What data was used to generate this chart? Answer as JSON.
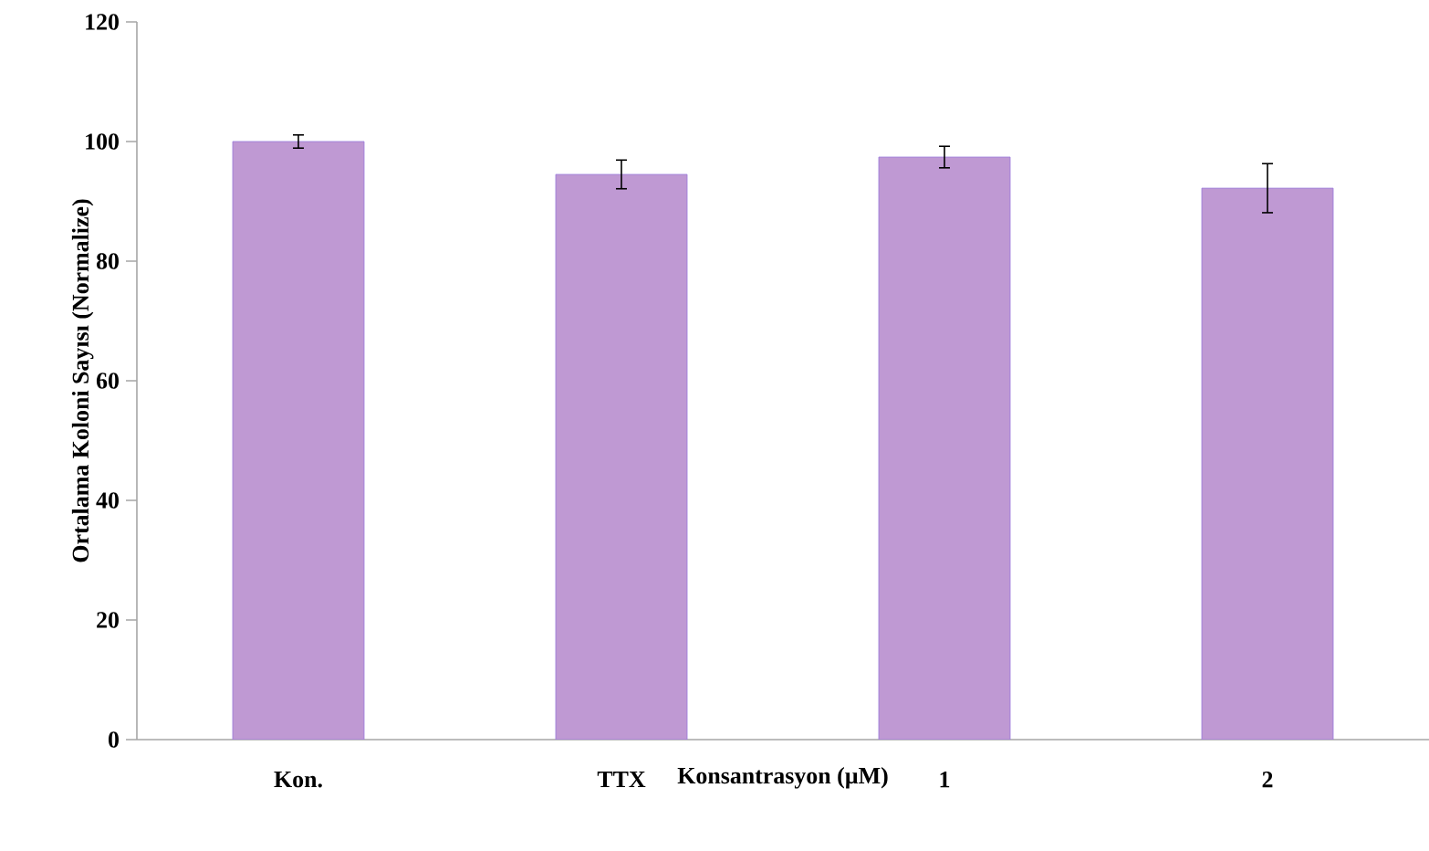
{
  "chart_data": {
    "type": "bar",
    "xlabel": "Konsantrasyon (µM)",
    "ylabel": "Ortalama Koloni Sayısı (Normalize)",
    "categories": [
      "Kon.",
      "TTX",
      "1",
      "2"
    ],
    "values": [
      100,
      94.5,
      97.4,
      92.2
    ],
    "errors": [
      1.1,
      2.4,
      1.8,
      4.1
    ],
    "color": "#bf99d3",
    "ylim": [
      0,
      120
    ],
    "yticks": [
      0,
      20,
      40,
      60,
      80,
      100,
      120
    ],
    "grid": false
  }
}
